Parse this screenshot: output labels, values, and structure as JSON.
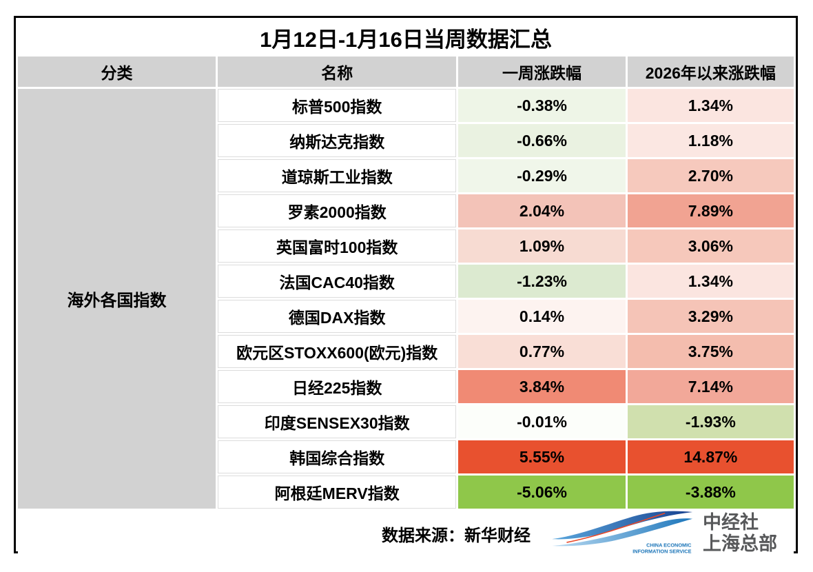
{
  "title": "1月12日-1月16日当周数据汇总",
  "table": {
    "columns": [
      "分类",
      "名称",
      "一周涨跌幅",
      "2026年以来涨跌幅"
    ],
    "category": "海外各国指数",
    "rows": [
      {
        "name": "标普500指数",
        "week": "-0.38%",
        "week_bg": "#eef5e7",
        "ytd": "1.34%",
        "ytd_bg": "#fbe5e0"
      },
      {
        "name": "纳斯达克指数",
        "week": "-0.66%",
        "week_bg": "#eaf2e1",
        "ytd": "1.18%",
        "ytd_bg": "#fbe7e2"
      },
      {
        "name": "道琼斯工业指数",
        "week": "-0.29%",
        "week_bg": "#f0f6ea",
        "ytd": "2.70%",
        "ytd_bg": "#f6c9bd"
      },
      {
        "name": "罗素2000指数",
        "week": "2.04%",
        "week_bg": "#f3c3b8",
        "ytd": "7.89%",
        "ytd_bg": "#f1a392"
      },
      {
        "name": "英国富时100指数",
        "week": "1.09%",
        "week_bg": "#f7dbd2",
        "ytd": "3.06%",
        "ytd_bg": "#f6c8bb"
      },
      {
        "name": "法国CAC40指数",
        "week": "-1.23%",
        "week_bg": "#dcead0",
        "ytd": "1.34%",
        "ytd_bg": "#fbe5e0"
      },
      {
        "name": "德国DAX指数",
        "week": "0.14%",
        "week_bg": "#fdf3f0",
        "ytd": "3.29%",
        "ytd_bg": "#f5c4b7"
      },
      {
        "name": "欧元区STOXX600(欧元)指数",
        "week": "0.77%",
        "week_bg": "#f9ded6",
        "ytd": "3.75%",
        "ytd_bg": "#f4bdae"
      },
      {
        "name": "日经225指数",
        "week": "3.84%",
        "week_bg": "#f08a74",
        "ytd": "7.14%",
        "ytd_bg": "#f2a899"
      },
      {
        "name": "印度SENSEX30指数",
        "week": "-0.01%",
        "week_bg": "#fcfefa",
        "ytd": "-1.93%",
        "ytd_bg": "#d0e0ae"
      },
      {
        "name": "韩国综合指数",
        "week": "5.55%",
        "week_bg": "#e8512f",
        "ytd": "14.87%",
        "ytd_bg": "#e8512f"
      },
      {
        "name": "阿根廷MERV指数",
        "week": "-5.06%",
        "week_bg": "#8fc74a",
        "ytd": "-3.88%",
        "ytd_bg": "#8fc74a"
      }
    ]
  },
  "footer": {
    "source_label": "数据来源：新华财经",
    "logo_caption_1": "CHINA ECONOMIC",
    "logo_caption_2": "INFORMATION SERVICE",
    "logo_org": "中经社",
    "logo_branch": "上海总部"
  },
  "colors": {
    "header_bg": "#d2d2d2",
    "strong_up": "#e8512f",
    "strong_down": "#8fc74a",
    "border": "#000000",
    "logo_blue": "#1a74b8",
    "logo_text": "#57585a"
  },
  "chart_data": {
    "type": "table",
    "title": "1月12日-1月16日当周数据汇总",
    "columns": [
      "分类",
      "名称",
      "一周涨跌幅",
      "2026年以来涨跌幅"
    ],
    "category": "海外各国指数",
    "rows": [
      {
        "name": "标普500指数",
        "week_pct": -0.38,
        "ytd_pct": 1.34
      },
      {
        "name": "纳斯达克指数",
        "week_pct": -0.66,
        "ytd_pct": 1.18
      },
      {
        "name": "道琼斯工业指数",
        "week_pct": -0.29,
        "ytd_pct": 2.7
      },
      {
        "name": "罗素2000指数",
        "week_pct": 2.04,
        "ytd_pct": 7.89
      },
      {
        "name": "英国富时100指数",
        "week_pct": 1.09,
        "ytd_pct": 3.06
      },
      {
        "name": "法国CAC40指数",
        "week_pct": -1.23,
        "ytd_pct": 1.34
      },
      {
        "name": "德国DAX指数",
        "week_pct": 0.14,
        "ytd_pct": 3.29
      },
      {
        "name": "欧元区STOXX600(欧元)指数",
        "week_pct": 0.77,
        "ytd_pct": 3.75
      },
      {
        "name": "日经225指数",
        "week_pct": 3.84,
        "ytd_pct": 7.14
      },
      {
        "name": "印度SENSEX30指数",
        "week_pct": -0.01,
        "ytd_pct": -1.93
      },
      {
        "name": "韩国综合指数",
        "week_pct": 5.55,
        "ytd_pct": 14.87
      },
      {
        "name": "阿根廷MERV指数",
        "week_pct": -5.06,
        "ytd_pct": -3.88
      }
    ],
    "units": "%",
    "source": "新华财经",
    "color_coding": "red shades = positive change, green shades = negative change, intensity scales with magnitude"
  }
}
